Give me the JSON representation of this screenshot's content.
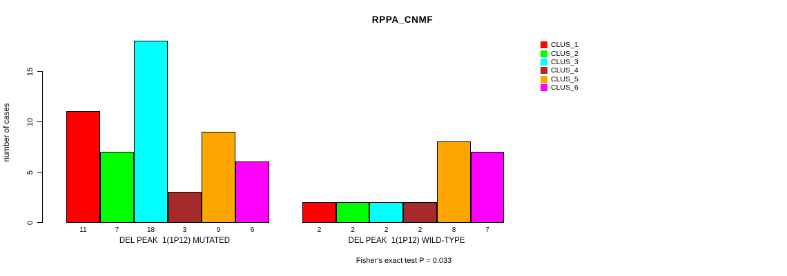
{
  "chart_data": {
    "type": "bar",
    "title": "RPPA_CNMF",
    "ylabel": "number of cases",
    "ylim": [
      0,
      18
    ],
    "yticks": [
      0,
      5,
      10,
      15
    ],
    "grid": false,
    "legend_position": "right",
    "series": [
      {
        "name": "CLUS_1",
        "color": "#FF0000"
      },
      {
        "name": "CLUS_2",
        "color": "#00FF00"
      },
      {
        "name": "CLUS_3",
        "color": "#00FFFF"
      },
      {
        "name": "CLUS_4",
        "color": "#A52A2A"
      },
      {
        "name": "CLUS_5",
        "color": "#FFA500"
      },
      {
        "name": "CLUS_6",
        "color": "#FF00FF"
      }
    ],
    "groups": [
      {
        "label": "DEL PEAK  1(1P12) MUTATED",
        "values": [
          11,
          7,
          18,
          3,
          9,
          6
        ]
      },
      {
        "label": "DEL PEAK  1(1P12) WILD-TYPE",
        "values": [
          2,
          2,
          2,
          2,
          8,
          7
        ]
      }
    ],
    "annotation": "Fisher's exact test P = 0.033"
  }
}
